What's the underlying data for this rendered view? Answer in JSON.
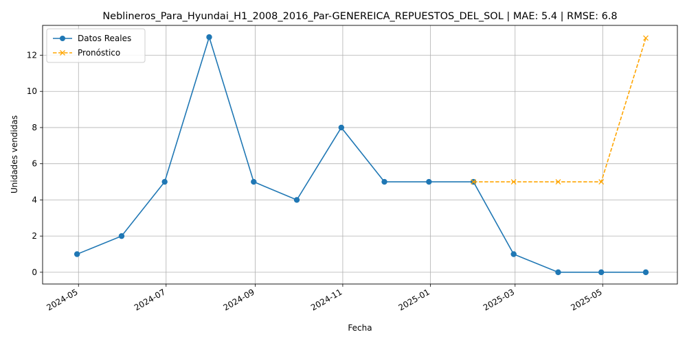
{
  "chart_data": {
    "type": "line",
    "title": "Neblineros_Para_Hyundai_H1_2008_2016_Par-GENEREICA_REPUESTOS_DEL_SOL | MAE: 5.4 | RMSE: 6.8",
    "xlabel": "Fecha",
    "ylabel": "Unidades vendidas",
    "ylim": [
      -0.65,
      13.65
    ],
    "xlim": [
      "2024-04-06",
      "2025-06-22"
    ],
    "grid": true,
    "legend_position": "top-left",
    "x_ticks": [
      "2024-05",
      "2024-07",
      "2024-09",
      "2024-11",
      "2025-01",
      "2025-03",
      "2025-05"
    ],
    "y_ticks": [
      0,
      2,
      4,
      6,
      8,
      10,
      12
    ],
    "series": [
      {
        "name": "Datos Reales",
        "color": "#1f77b4",
        "style": "solid",
        "marker": "circle",
        "x": [
          "2024-04-30",
          "2024-05-31",
          "2024-06-30",
          "2024-07-31",
          "2024-08-31",
          "2024-09-30",
          "2024-10-31",
          "2024-11-30",
          "2024-12-31",
          "2025-01-31",
          "2025-02-28",
          "2025-03-31",
          "2025-04-30",
          "2025-05-31"
        ],
        "values": [
          1,
          2,
          5,
          13,
          5,
          4,
          8,
          5,
          5,
          5,
          1,
          0,
          0,
          0
        ]
      },
      {
        "name": "Pronóstico",
        "color": "#ffa500",
        "style": "dashed",
        "marker": "x",
        "x": [
          "2025-01-31",
          "2025-02-28",
          "2025-03-31",
          "2025-04-30",
          "2025-05-31"
        ],
        "values": [
          5,
          5,
          5,
          5,
          12.95
        ]
      }
    ]
  }
}
